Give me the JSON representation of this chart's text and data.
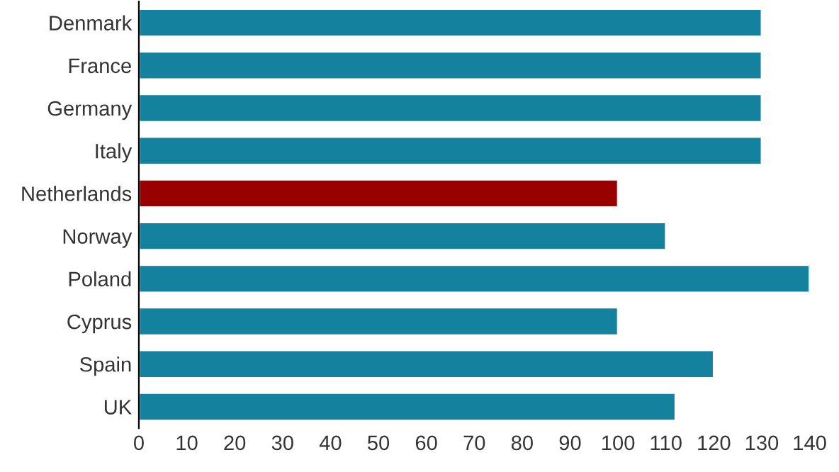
{
  "chart_data": {
    "type": "bar",
    "orientation": "horizontal",
    "categories": [
      "Denmark",
      "France",
      "Germany",
      "Italy",
      "Netherlands",
      "Norway",
      "Poland",
      "Cyprus",
      "Spain",
      "UK"
    ],
    "values": [
      130,
      130,
      130,
      130,
      100,
      110,
      140,
      100,
      120,
      112
    ],
    "colors": [
      "#14819f",
      "#14819f",
      "#14819f",
      "#14819f",
      "#990000",
      "#14819f",
      "#14819f",
      "#14819f",
      "#14819f",
      "#14819f"
    ],
    "xlim": [
      0,
      140
    ],
    "xticks": [
      0,
      10,
      20,
      30,
      40,
      50,
      60,
      70,
      80,
      90,
      100,
      110,
      120,
      130,
      140
    ],
    "grid": false,
    "legend": false
  }
}
